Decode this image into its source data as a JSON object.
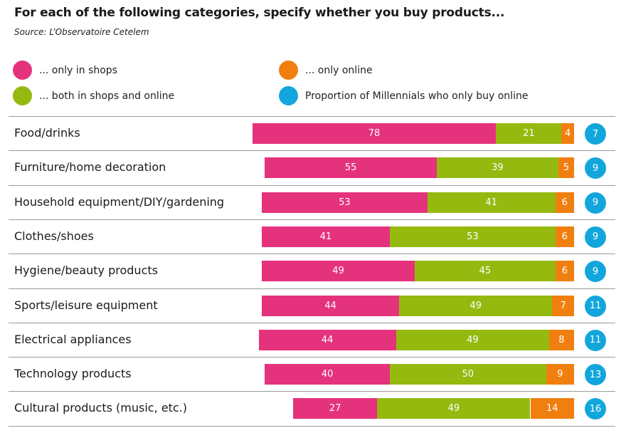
{
  "header": {
    "title": "For each of the following categories, specify whether you buy products...",
    "source": "Source: L’Observatoire Cetelem"
  },
  "legend": [
    {
      "key": "shops",
      "label": "... only in shops",
      "color": "#e5327d"
    },
    {
      "key": "online",
      "label": "... only online",
      "color": "#f07f0f"
    },
    {
      "key": "both",
      "label": "... both in shops and online",
      "color": "#95b90f"
    },
    {
      "key": "millennials",
      "label": "Proportion of Millennials who only buy online",
      "color": "#12a6dc"
    }
  ],
  "chart_data": {
    "type": "bar",
    "stacked": true,
    "orientation": "horizontal",
    "categories": [
      "Food/drinks",
      "Furniture/home decoration",
      "Household equipment/DIY/gardening",
      "Clothes/shoes",
      "Hygiene/beauty products",
      "Sports/leisure equipment",
      "Electrical appliances",
      "Technology products",
      "Cultural products (music, etc.)"
    ],
    "series": [
      {
        "name": "... only in shops",
        "color": "#e5327d",
        "values": [
          78,
          55,
          53,
          41,
          49,
          44,
          44,
          40,
          27
        ]
      },
      {
        "name": "... both in shops and online",
        "color": "#95b90f",
        "values": [
          21,
          39,
          41,
          53,
          45,
          49,
          49,
          50,
          49
        ]
      },
      {
        "name": "... only online",
        "color": "#f07f0f",
        "values": [
          4,
          5,
          6,
          6,
          6,
          7,
          8,
          9,
          14
        ]
      }
    ],
    "millennials_only_online": {
      "name": "Proportion of Millennials who only buy online",
      "color": "#12a6dc",
      "values": [
        7,
        9,
        9,
        9,
        9,
        11,
        11,
        13,
        16
      ]
    },
    "bar_alignment": "right"
  }
}
